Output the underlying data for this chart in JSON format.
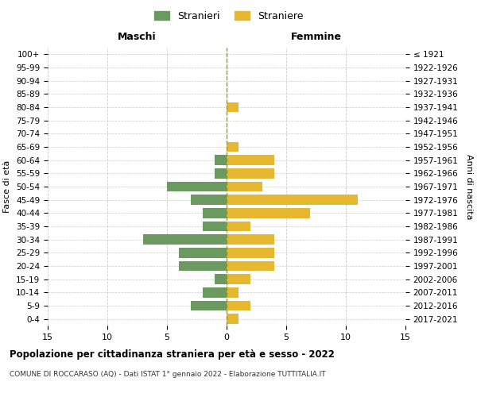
{
  "age_groups": [
    "100+",
    "95-99",
    "90-94",
    "85-89",
    "80-84",
    "75-79",
    "70-74",
    "65-69",
    "60-64",
    "55-59",
    "50-54",
    "45-49",
    "40-44",
    "35-39",
    "30-34",
    "25-29",
    "20-24",
    "15-19",
    "10-14",
    "5-9",
    "0-4"
  ],
  "birth_years": [
    "≤ 1921",
    "1922-1926",
    "1927-1931",
    "1932-1936",
    "1937-1941",
    "1942-1946",
    "1947-1951",
    "1952-1956",
    "1957-1961",
    "1962-1966",
    "1967-1971",
    "1972-1976",
    "1977-1981",
    "1982-1986",
    "1987-1991",
    "1992-1996",
    "1997-2001",
    "2002-2006",
    "2007-2011",
    "2012-2016",
    "2017-2021"
  ],
  "males": [
    0,
    0,
    0,
    0,
    0,
    0,
    0,
    0,
    1,
    1,
    5,
    3,
    2,
    2,
    7,
    4,
    4,
    1,
    2,
    3,
    0
  ],
  "females": [
    0,
    0,
    0,
    0,
    1,
    0,
    0,
    1,
    4,
    4,
    3,
    11,
    7,
    2,
    4,
    4,
    4,
    2,
    1,
    2,
    1
  ],
  "male_color": "#6a9a5f",
  "female_color": "#e6b830",
  "bg_color": "#ffffff",
  "grid_color": "#cccccc",
  "title": "Popolazione per cittadinanza straniera per età e sesso - 2022",
  "subtitle": "COMUNE DI ROCCARASO (AQ) - Dati ISTAT 1° gennaio 2022 - Elaborazione TUTTITALIA.IT",
  "xlabel_left": "Maschi",
  "xlabel_right": "Femmine",
  "ylabel_left": "Fasce di età",
  "ylabel_right": "Anni di nascita",
  "legend_male": "Stranieri",
  "legend_female": "Straniere",
  "xlim": 15
}
